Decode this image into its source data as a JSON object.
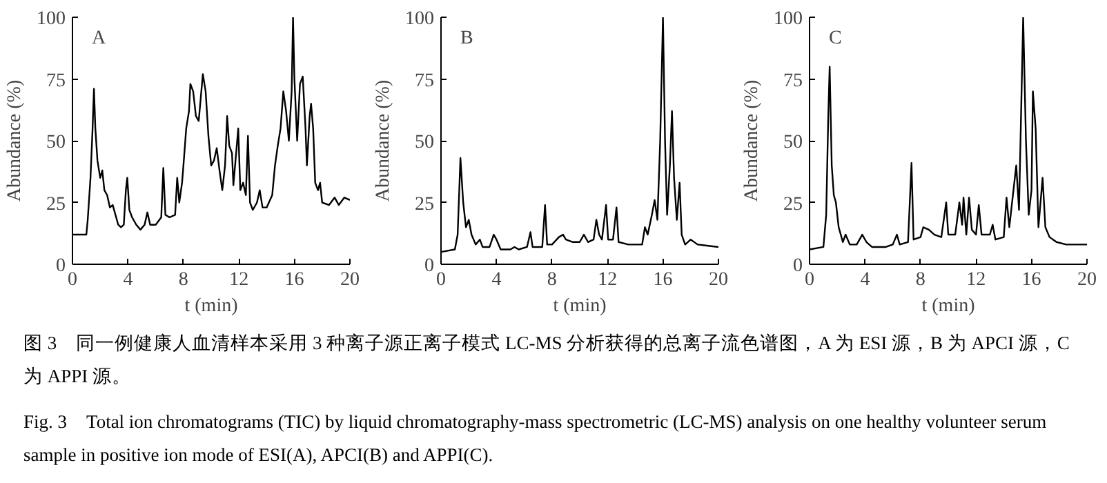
{
  "chart_data": [
    {
      "type": "line",
      "title": "A",
      "xlabel": "t (min)",
      "ylabel": "Abundance (%)",
      "xlim": [
        0,
        20
      ],
      "ylim": [
        0,
        100
      ],
      "xticks": [
        0,
        4,
        8,
        12,
        16,
        20
      ],
      "yticks": [
        0,
        25,
        50,
        75,
        100
      ],
      "marker": "none",
      "line_style": "solid",
      "series": [
        {
          "color": "#000000",
          "x": [
            0,
            1.0,
            1.1,
            1.3,
            1.45,
            1.55,
            1.65,
            1.8,
            2.0,
            2.15,
            2.3,
            2.5,
            2.7,
            2.9,
            3.1,
            3.3,
            3.5,
            3.7,
            3.85,
            3.95,
            4.1,
            4.3,
            4.6,
            4.9,
            5.2,
            5.4,
            5.6,
            6.0,
            6.4,
            6.55,
            6.7,
            7.0,
            7.4,
            7.55,
            7.7,
            7.9,
            8.0,
            8.2,
            8.4,
            8.5,
            8.7,
            8.9,
            9.1,
            9.4,
            9.6,
            9.8,
            10.0,
            10.2,
            10.4,
            10.6,
            10.8,
            11.0,
            11.15,
            11.3,
            11.5,
            11.6,
            11.8,
            11.95,
            12.1,
            12.3,
            12.5,
            12.65,
            12.8,
            13.0,
            13.3,
            13.5,
            13.7,
            14.0,
            14.4,
            14.6,
            14.8,
            15.0,
            15.2,
            15.4,
            15.6,
            15.8,
            15.9,
            16.0,
            16.2,
            16.4,
            16.6,
            16.8,
            16.9,
            17.1,
            17.2,
            17.35,
            17.5,
            17.7,
            17.85,
            18.0,
            18.5,
            18.9,
            19.2,
            19.6,
            20
          ],
          "values": [
            12,
            12,
            18,
            35,
            55,
            71,
            55,
            42,
            35,
            38,
            30,
            28,
            23,
            24,
            20,
            16,
            15,
            16,
            30,
            35,
            22,
            19,
            16,
            14,
            16,
            21,
            16,
            16,
            19,
            39,
            20,
            19,
            20,
            35,
            25,
            33,
            40,
            55,
            62,
            73,
            70,
            60,
            58,
            77,
            70,
            52,
            40,
            42,
            47,
            38,
            30,
            40,
            60,
            48,
            45,
            32,
            45,
            55,
            30,
            33,
            28,
            52,
            25,
            22,
            25,
            30,
            23,
            23,
            28,
            40,
            48,
            55,
            70,
            62,
            50,
            70,
            100,
            75,
            50,
            73,
            76,
            55,
            40,
            60,
            65,
            55,
            33,
            30,
            33,
            25,
            24,
            27,
            24,
            27,
            26
          ]
        }
      ]
    },
    {
      "type": "line",
      "title": "B",
      "xlabel": "t (min)",
      "ylabel": "Abundance (%)",
      "xlim": [
        0,
        20
      ],
      "ylim": [
        0,
        100
      ],
      "xticks": [
        0,
        4,
        8,
        12,
        16,
        20
      ],
      "yticks": [
        0,
        25,
        50,
        75,
        100
      ],
      "marker": "none",
      "line_style": "solid",
      "series": [
        {
          "color": "#000000",
          "x": [
            0,
            1.0,
            1.2,
            1.4,
            1.6,
            1.8,
            2.0,
            2.2,
            2.5,
            2.8,
            3.0,
            3.5,
            3.8,
            4.0,
            4.3,
            5.0,
            5.3,
            5.6,
            6.2,
            6.45,
            6.6,
            7.3,
            7.5,
            7.65,
            8.0,
            8.5,
            8.8,
            9.0,
            9.5,
            10.0,
            10.3,
            10.6,
            11.0,
            11.2,
            11.4,
            11.6,
            11.9,
            12.05,
            12.4,
            12.65,
            12.8,
            13.5,
            14.5,
            14.7,
            14.9,
            15.2,
            15.4,
            15.6,
            15.8,
            16.0,
            16.15,
            16.3,
            16.5,
            16.65,
            16.8,
            17.0,
            17.2,
            17.35,
            17.6,
            18.0,
            18.5,
            20
          ],
          "values": [
            5,
            6,
            12,
            43,
            25,
            15,
            18,
            12,
            8,
            10,
            7,
            7,
            12,
            10,
            6,
            6,
            7,
            6,
            7,
            13,
            7,
            7,
            24,
            8,
            8,
            11,
            12,
            10,
            9,
            9,
            12,
            9,
            10,
            18,
            12,
            10,
            24,
            10,
            10,
            23,
            9,
            8,
            8,
            15,
            12,
            20,
            26,
            18,
            50,
            100,
            50,
            20,
            40,
            62,
            35,
            18,
            33,
            12,
            8,
            10,
            8,
            7
          ]
        }
      ]
    },
    {
      "type": "line",
      "title": "C",
      "xlabel": "t (min)",
      "ylabel": "Abundance (%)",
      "xlim": [
        0,
        20
      ],
      "ylim": [
        0,
        100
      ],
      "xticks": [
        0,
        4,
        8,
        12,
        16,
        20
      ],
      "yticks": [
        0,
        25,
        50,
        75,
        100
      ],
      "marker": "none",
      "line_style": "solid",
      "series": [
        {
          "color": "#000000",
          "x": [
            0,
            1.0,
            1.2,
            1.35,
            1.45,
            1.6,
            1.75,
            1.9,
            2.1,
            2.4,
            2.6,
            2.9,
            3.4,
            3.8,
            4.1,
            4.5,
            5.0,
            5.5,
            6.0,
            6.3,
            6.5,
            7.1,
            7.35,
            7.5,
            8.0,
            8.2,
            8.6,
            9.0,
            9.5,
            9.85,
            10.0,
            10.5,
            10.8,
            11.0,
            11.1,
            11.3,
            11.5,
            11.7,
            12.0,
            12.2,
            12.4,
            12.7,
            13.0,
            13.2,
            13.4,
            14.0,
            14.2,
            14.4,
            14.7,
            14.9,
            15.1,
            15.4,
            15.6,
            15.8,
            16.0,
            16.1,
            16.3,
            16.5,
            16.8,
            17.0,
            17.3,
            17.8,
            18.5,
            20
          ],
          "values": [
            6,
            7,
            20,
            60,
            80,
            40,
            28,
            25,
            15,
            9,
            12,
            8,
            8,
            12,
            9,
            7,
            7,
            7,
            8,
            12,
            8,
            9,
            41,
            10,
            11,
            15,
            14,
            12,
            11,
            25,
            12,
            12,
            25,
            16,
            27,
            12,
            27,
            14,
            12,
            24,
            12,
            12,
            12,
            16,
            10,
            11,
            27,
            15,
            30,
            40,
            22,
            100,
            50,
            20,
            30,
            70,
            55,
            15,
            35,
            15,
            11,
            9,
            8,
            8
          ]
        }
      ]
    },
    {
      "type": "other",
      "annotations": [
        "图 3　同一例健康人血清样本采用 3 种离子源正离子模式 LC-MS 分析获得的总离子流色谱图，A 为 ESI 源，B 为 APCI 源，C 为 APPI 源。",
        "Fig. 3　Total ion chromatograms (TIC) by liquid chromatography-mass spectrometric (LC-MS) analysis on one healthy volunteer serum sample in positive ion mode of ESI(A), APCI(B) and APPI(C)."
      ]
    }
  ]
}
